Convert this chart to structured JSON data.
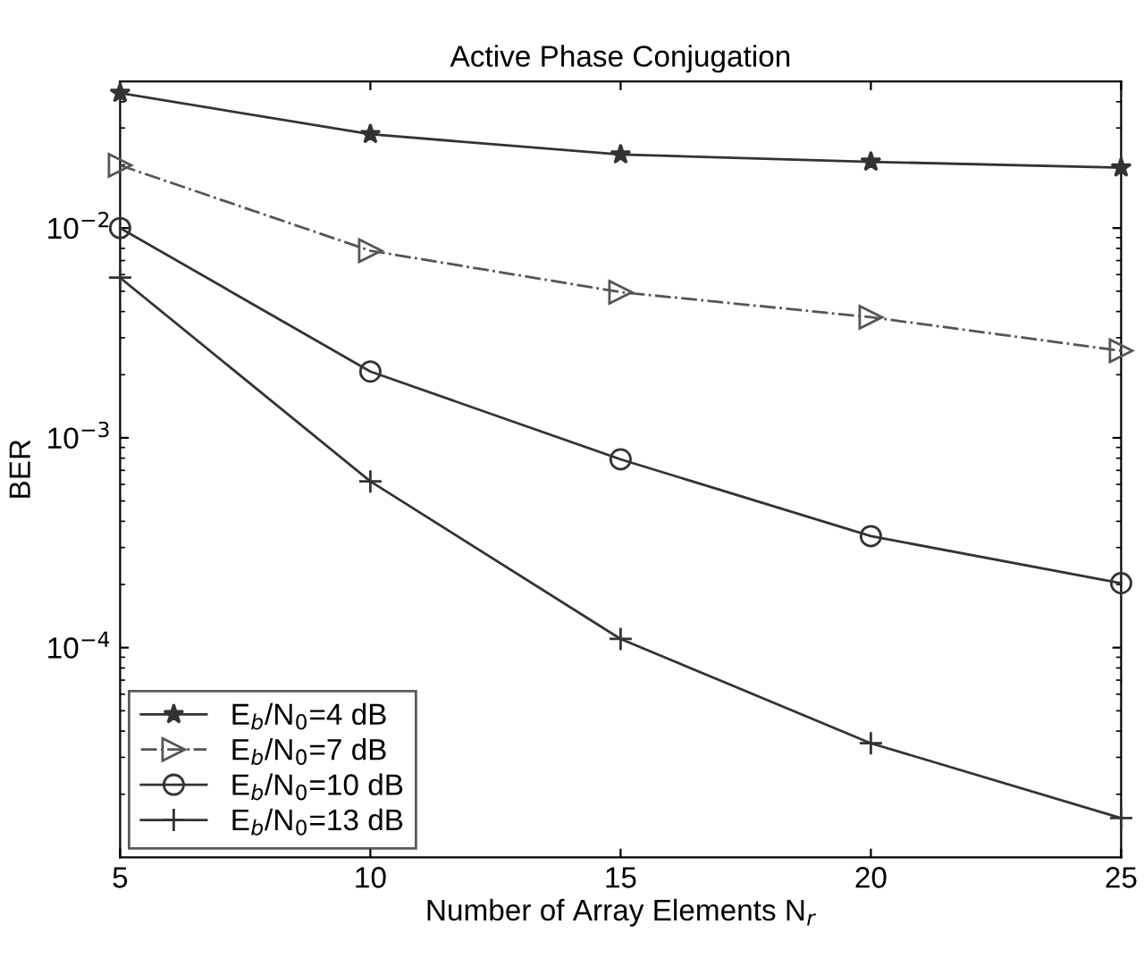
{
  "chart_data": {
    "type": "line",
    "title": "Active Phase Conjugation",
    "xlabel": "Number of Array Elements N$_{r}$",
    "ylabel": "BER",
    "x": [
      5,
      10,
      15,
      20,
      25
    ],
    "log": "y",
    "xlim": [
      5,
      25
    ],
    "xticks": [
      5,
      10,
      15,
      20,
      25
    ],
    "ylim": [
      1e-05,
      0.05
    ],
    "yticks": [
      {
        "value": 0.01,
        "label": "10$^{−2}$"
      },
      {
        "value": 0.001,
        "label": "10$^{−3}$"
      },
      {
        "value": 0.0001,
        "label": "10$^{−4}$"
      }
    ],
    "grid": false,
    "legend": "bottom left",
    "series": [
      {
        "name": "E$_{b}$/N$_{0}$=4 dB",
        "color": "#333333",
        "marker": "star",
        "line_style": "solid",
        "values": [
          0.044,
          0.028,
          0.0224,
          0.0207,
          0.0194
        ]
      },
      {
        "name": "E$_{b}$/N$_{0}$=7 dB",
        "color": "#555555",
        "marker": "triangle",
        "line_style": "dashdot",
        "values": [
          0.0199,
          0.0078,
          0.00495,
          0.00376,
          0.0026
        ]
      },
      {
        "name": "E$_{b}$/N$_{0}$=10 dB",
        "color": "#333333",
        "marker": "circle",
        "line_style": "solid",
        "values": [
          0.01,
          0.00207,
          0.00079,
          0.00034,
          0.000203
        ]
      },
      {
        "name": "E$_{b}$/N$_{0}$=13 dB",
        "color": "#333333",
        "marker": "cross",
        "line_style": "solid",
        "values": [
          0.0058,
          0.00062,
          0.00011,
          3.5e-05,
          1.54e-05
        ]
      }
    ]
  }
}
